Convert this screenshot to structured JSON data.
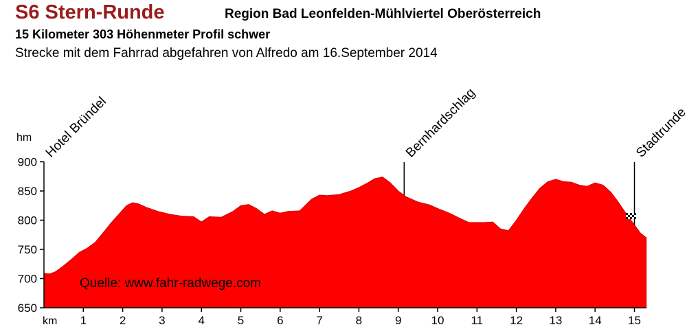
{
  "header": {
    "title": "S6 Stern-Runde",
    "region": "Region Bad Leonfelden-Mühlviertel Oberösterreich",
    "stats": "15 Kilometer  303 Höhenmeter  Profil schwer",
    "description": "Strecke mit dem Fahrrad abgefahren von Alfredo am 16.September 2014"
  },
  "colors": {
    "title": "#9b1b1b",
    "fill": "#ff0000",
    "axis": "#000000"
  },
  "chart_data": {
    "type": "area",
    "xlabel": "km",
    "ylabel": "hm",
    "xlim": [
      0,
      15.3
    ],
    "ylim": [
      650,
      900
    ],
    "xticks": [
      1,
      2,
      3,
      4,
      5,
      6,
      7,
      8,
      9,
      10,
      11,
      12,
      13,
      14,
      15
    ],
    "yticks": [
      650,
      700,
      750,
      800,
      850,
      900
    ],
    "grid": false,
    "source": "Quelle: www.fahr-radwege.com",
    "waypoints": [
      {
        "name": "Hotel Bründel",
        "x": 0.0
      },
      {
        "name": "Bernhardschlag",
        "x": 9.15
      },
      {
        "name": "Stadtrunde",
        "x": 15.0
      }
    ],
    "x": [
      0,
      0.15,
      0.3,
      0.5,
      0.7,
      0.9,
      1.1,
      1.3,
      1.5,
      1.7,
      1.9,
      2.1,
      2.25,
      2.4,
      2.6,
      2.9,
      3.2,
      3.5,
      3.8,
      4.0,
      4.2,
      4.5,
      4.8,
      5.0,
      5.2,
      5.4,
      5.6,
      5.8,
      6.0,
      6.2,
      6.5,
      6.8,
      7.0,
      7.2,
      7.5,
      7.8,
      8.0,
      8.2,
      8.4,
      8.6,
      8.8,
      9.0,
      9.2,
      9.5,
      9.8,
      10.0,
      10.3,
      10.6,
      10.8,
      11.0,
      11.2,
      11.4,
      11.6,
      11.8,
      12.0,
      12.2,
      12.4,
      12.6,
      12.8,
      13.0,
      13.2,
      13.4,
      13.6,
      13.8,
      14.0,
      14.2,
      14.4,
      14.6,
      14.8,
      15.0,
      15.15,
      15.3
    ],
    "y": [
      709,
      708,
      712,
      722,
      733,
      745,
      752,
      762,
      778,
      795,
      810,
      825,
      830,
      828,
      822,
      815,
      810,
      807,
      806,
      797,
      806,
      805,
      815,
      825,
      827,
      820,
      810,
      816,
      812,
      815,
      816,
      836,
      843,
      842,
      844,
      850,
      856,
      863,
      871,
      874,
      864,
      850,
      840,
      831,
      826,
      820,
      812,
      802,
      796,
      796,
      796,
      797,
      785,
      782,
      800,
      820,
      838,
      855,
      866,
      870,
      866,
      865,
      860,
      858,
      864,
      860,
      848,
      830,
      810,
      792,
      778,
      770
    ]
  }
}
